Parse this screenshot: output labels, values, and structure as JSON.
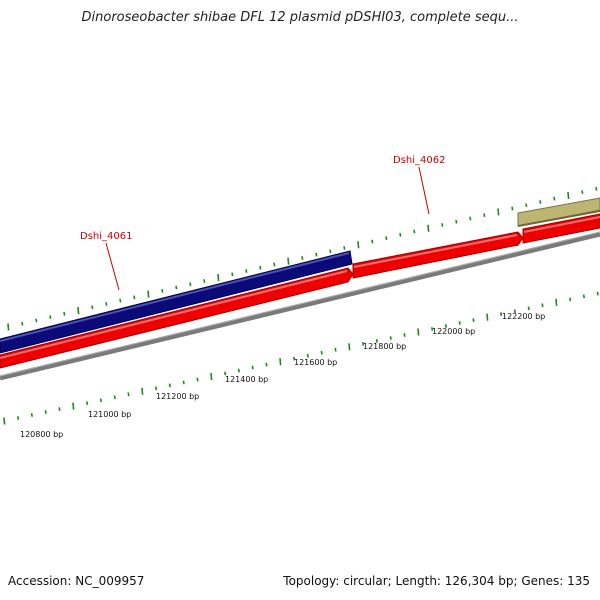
{
  "title": "Dinoroseobacter shibae DFL 12 plasmid pDSHI03, complete sequ...",
  "footer": {
    "accession": "Accession: NC_009957",
    "topology": "Topology: circular; Length: 126,304 bp; Genes: 135"
  },
  "colors": {
    "backbone": "#808080",
    "forward_gene": "#ff0000",
    "reverse_gene": "#000080",
    "other_feature": "#b8b36c",
    "tick": "#1a8c1a",
    "gene_label": "#cc0000"
  },
  "scale_labels": [
    {
      "label": "120800 bp"
    },
    {
      "label": "121000 bp"
    },
    {
      "label": "121200 bp"
    },
    {
      "label": "121400 bp"
    },
    {
      "label": "121600 bp"
    },
    {
      "label": "121800 bp"
    },
    {
      "label": "122000 bp"
    },
    {
      "label": "122200 bp"
    }
  ],
  "genes": [
    {
      "label": "Dshi_4061"
    },
    {
      "label": "Dshi_4062"
    }
  ]
}
